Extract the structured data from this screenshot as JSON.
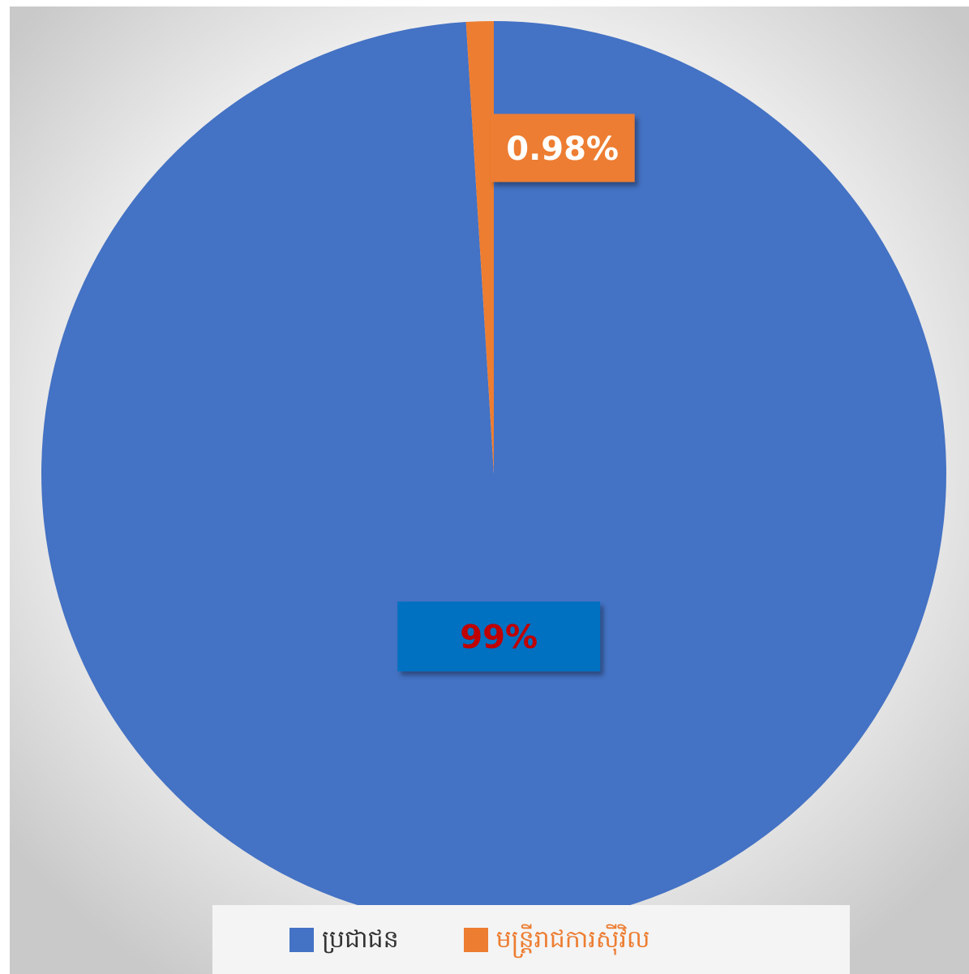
{
  "chart_data": {
    "type": "pie",
    "categories": [
      "ប្រជាជន",
      "មន្ត្រីរាជការស៊ីវិល"
    ],
    "values": [
      99.02,
      0.98
    ],
    "data_labels": [
      "99%",
      "0.98%"
    ],
    "colors": [
      "#4472c4",
      "#ed7d31"
    ],
    "label_colors": [
      "#c00000",
      "#ffffff"
    ],
    "label_box_colors": [
      "#0070c0",
      "#ed7d31"
    ],
    "start_angle_deg": 0,
    "direction": "clockwise",
    "legend_position": "bottom"
  }
}
